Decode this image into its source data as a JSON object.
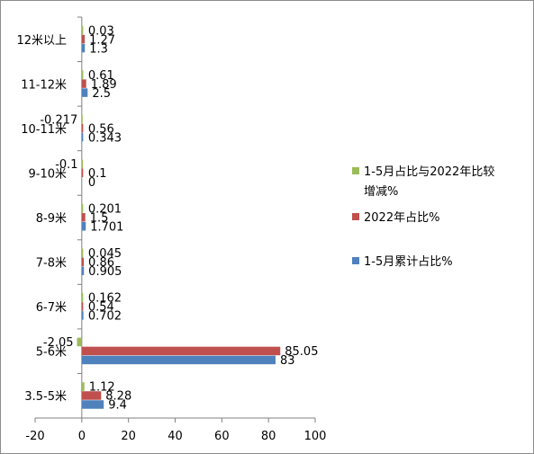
{
  "chart_data": {
    "type": "bar",
    "orientation": "horizontal",
    "title": "",
    "xlabel": "",
    "ylabel": "",
    "xlim": [
      -20,
      100
    ],
    "xticks": [
      -20,
      0,
      20,
      40,
      60,
      80,
      100
    ],
    "grid": false,
    "legend_position": "right",
    "categories": [
      "12米以上",
      "11-12米",
      "10-11米",
      "9-10米",
      "8-9米",
      "7-8米",
      "6-7米",
      "5-6米",
      "3.5-5米"
    ],
    "series": [
      {
        "name": "1-5月占比与2022年比较增减%",
        "legend_lines": [
          "1-5月占比与2022年比较",
          "增减%"
        ],
        "color": "#9bbb59",
        "values": [
          0.03,
          0.61,
          -0.217,
          -0.1,
          0.201,
          0.045,
          0.162,
          -2.05,
          1.12
        ],
        "labels": [
          "0.03",
          "0.61",
          "-0.217",
          "-0.1",
          "0.201",
          "0.045",
          "0.162",
          "-2.05",
          "1.12"
        ]
      },
      {
        "name": "2022年占比%",
        "legend_lines": [
          "2022年占比%"
        ],
        "color": "#c0504d",
        "values": [
          1.27,
          1.89,
          0.56,
          0.1,
          1.5,
          0.86,
          0.54,
          85.05,
          8.28
        ],
        "labels": [
          "1.27",
          "1.89",
          "0.56",
          "0.1",
          "1.5",
          "0.86",
          "0.54",
          "85.05",
          "8.28"
        ]
      },
      {
        "name": "1-5月累计占比%",
        "legend_lines": [
          "1-5月累计占比%"
        ],
        "color": "#4f81bd",
        "values": [
          1.3,
          2.5,
          0.343,
          0,
          1.701,
          0.905,
          0.702,
          83,
          9.4
        ],
        "labels": [
          "1.3",
          "2.5",
          "0.343",
          "0",
          "1.701",
          "0.905",
          "0.702",
          "83",
          "9.4"
        ]
      }
    ]
  }
}
